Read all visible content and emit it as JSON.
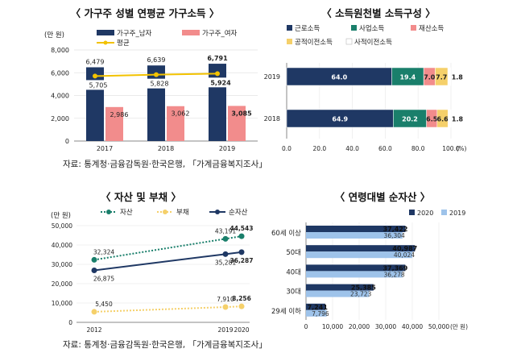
{
  "panels": {
    "p1": {
      "title": "〈 가구주 성별 연평균 가구소득 〉"
    },
    "p2": {
      "title": "〈 소득원천별 소득구성 〉"
    },
    "p3": {
      "title": "〈 자산 및 부채 〉"
    },
    "p4": {
      "title": "〈 연령대별 순자산 〉"
    }
  },
  "sources": {
    "top": "자료: 통계청·금융감독원·한국은행, 「가계금융복지조사」",
    "bottom": "자료: 통계청·금융감독원·한국은행, 「가계금융복지조사」"
  },
  "colors": {
    "navy": "#1f3864",
    "pink": "#f28c8c",
    "gold": "#f2c200",
    "teal": "#1a7f6b",
    "lightgold": "#f5d06a",
    "lightblue": "#9ec3ea",
    "orange": "#f9c57a"
  },
  "chart_data": [
    {
      "type": "bar",
      "unit": "(만 원)",
      "categories": [
        "2017",
        "2018",
        "2019"
      ],
      "series": [
        {
          "name": "가구주_남자",
          "values": [
            6479,
            6639,
            6791
          ]
        },
        {
          "name": "가구주_여자",
          "values": [
            2986,
            3062,
            3085
          ]
        },
        {
          "name": "평균",
          "type": "line",
          "values": [
            5705,
            5828,
            5924
          ],
          "labels": [
            "5,705",
            "5,828",
            "5,924"
          ]
        }
      ],
      "value_labels_male": [
        "6,479",
        "6,639",
        "6,791"
      ],
      "value_labels_female": [
        "2,986",
        "3,062",
        "3,085"
      ],
      "ylim": [
        0,
        8000
      ],
      "yticks": [
        "0",
        "2,000",
        "4,000",
        "6,000",
        "8,000"
      ],
      "legend": "top"
    },
    {
      "type": "bar",
      "orientation": "horizontal-stacked",
      "unit": "(%)",
      "categories": [
        "2019",
        "2018"
      ],
      "series": [
        {
          "name": "근로소득",
          "values": [
            64.0,
            64.9
          ]
        },
        {
          "name": "사업소득",
          "values": [
            19.4,
            20.2
          ]
        },
        {
          "name": "재산소득",
          "values": [
            7.0,
            6.5
          ]
        },
        {
          "name": "공적이전소득",
          "values": [
            7.7,
            6.6
          ]
        },
        {
          "name": "사적이전소득",
          "values": [
            1.8,
            1.8
          ]
        }
      ],
      "segment_labels": [
        [
          "64.0",
          "19.4",
          "7.0",
          "7.7",
          "1.8"
        ],
        [
          "64.9",
          "20.2",
          "6.5",
          "6.6",
          "1.8"
        ]
      ],
      "xlim": [
        0,
        100
      ],
      "xticks": [
        "0.0",
        "20.0",
        "40.0",
        "60.0",
        "80.0",
        "100.0"
      ],
      "legend": "top"
    },
    {
      "type": "line",
      "unit": "(만 원)",
      "x": [
        "2012",
        "2019",
        "2020"
      ],
      "xticks": [
        "2012",
        "2019",
        "2020"
      ],
      "series": [
        {
          "name": "자산",
          "values": [
            32324,
            43191,
            44543
          ],
          "labels": [
            "32,324",
            "43,191",
            "44,543"
          ]
        },
        {
          "name": "부채",
          "values": [
            5450,
            7910,
            8256
          ],
          "labels": [
            "5,450",
            "7,910",
            "8,256"
          ]
        },
        {
          "name": "순자산",
          "values": [
            26875,
            35281,
            36287
          ],
          "labels": [
            "26,875",
            "35,281",
            "36,287"
          ]
        }
      ],
      "ylim": [
        0,
        50000
      ],
      "yticks": [
        "0",
        "10,000",
        "20,000",
        "30,000",
        "40,000",
        "50,000"
      ],
      "legend": "top"
    },
    {
      "type": "bar",
      "orientation": "horizontal",
      "unit": "(만 원)",
      "categories": [
        "60세 이상",
        "50대",
        "40대",
        "30대",
        "29세 이하"
      ],
      "series": [
        {
          "name": "2020",
          "values": [
            37422,
            40987,
            37369,
            25385,
            7241
          ],
          "labels": [
            "37,422",
            "40,987",
            "37,369",
            "25,385",
            "7,241"
          ]
        },
        {
          "name": "2019",
          "values": [
            36304,
            40024,
            36278,
            23723,
            7796
          ],
          "labels": [
            "36,304",
            "40,024",
            "36,278",
            "23,723",
            "7,796"
          ]
        }
      ],
      "xlim": [
        0,
        50000
      ],
      "xticks": [
        "0",
        "10,000",
        "20,000",
        "30,000",
        "40,000",
        "50,000"
      ],
      "legend": "top"
    }
  ]
}
